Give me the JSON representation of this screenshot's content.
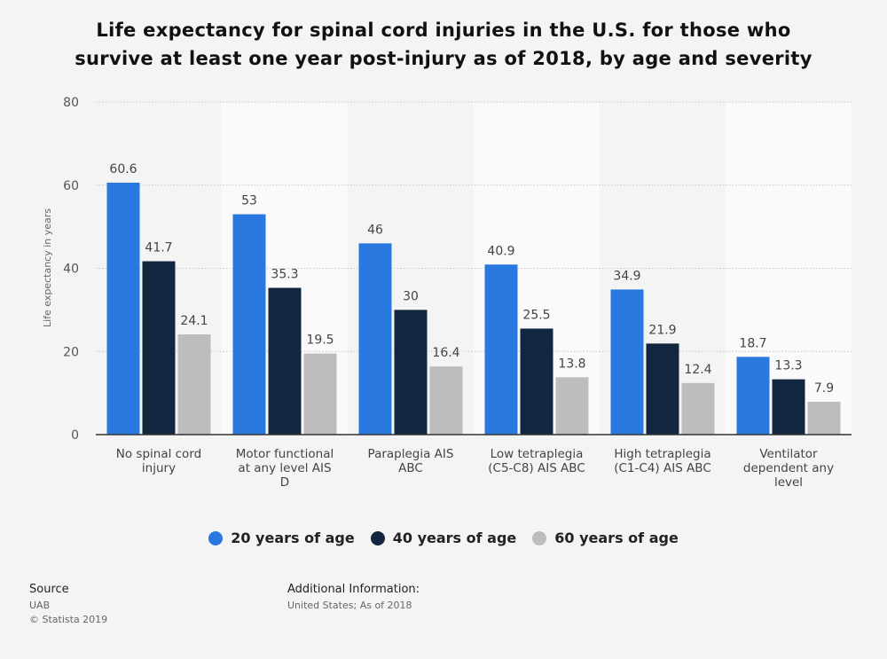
{
  "header": {
    "title_line1": "Life expectancy for spinal cord injuries in the U.S. for those who",
    "title_line2": "survive at least one year post-injury as of 2018, by age and severity"
  },
  "chart_data": {
    "type": "bar",
    "title": "Life expectancy for spinal cord injuries in the U.S. for those who survive at least one year post-injury as of 2018, by age and severity",
    "xlabel": "",
    "ylabel": "Life expectancy in years",
    "ylim": [
      0,
      80
    ],
    "yticks": [
      0,
      20,
      40,
      60,
      80
    ],
    "grid": true,
    "legend_position": "bottom",
    "categories": [
      [
        "No spinal cord",
        "injury"
      ],
      [
        "Motor functional",
        "at any level AIS",
        "D"
      ],
      [
        "Paraplegia AIS",
        "ABC"
      ],
      [
        "Low tetraplegia",
        "(C5-C8) AIS ABC"
      ],
      [
        "High tetraplegia",
        "(C1-C4) AIS ABC"
      ],
      [
        "Ventilator",
        "dependent any",
        "level"
      ]
    ],
    "series": [
      {
        "name": "20 years of age",
        "color": "#2878e0",
        "values": [
          60.6,
          53,
          46,
          40.9,
          34.9,
          18.7
        ]
      },
      {
        "name": "40 years of age",
        "color": "#12263f",
        "values": [
          41.7,
          35.3,
          30,
          25.5,
          21.9,
          13.3
        ]
      },
      {
        "name": "60 years of age",
        "color": "#bdbdbd",
        "values": [
          24.1,
          19.5,
          16.4,
          13.8,
          12.4,
          7.9
        ]
      }
    ]
  },
  "footer": {
    "source_heading": "Source",
    "source_lines": [
      "UAB",
      "© Statista 2019"
    ],
    "additional_heading": "Additional Information:",
    "additional_text": "United States; As of 2018"
  }
}
